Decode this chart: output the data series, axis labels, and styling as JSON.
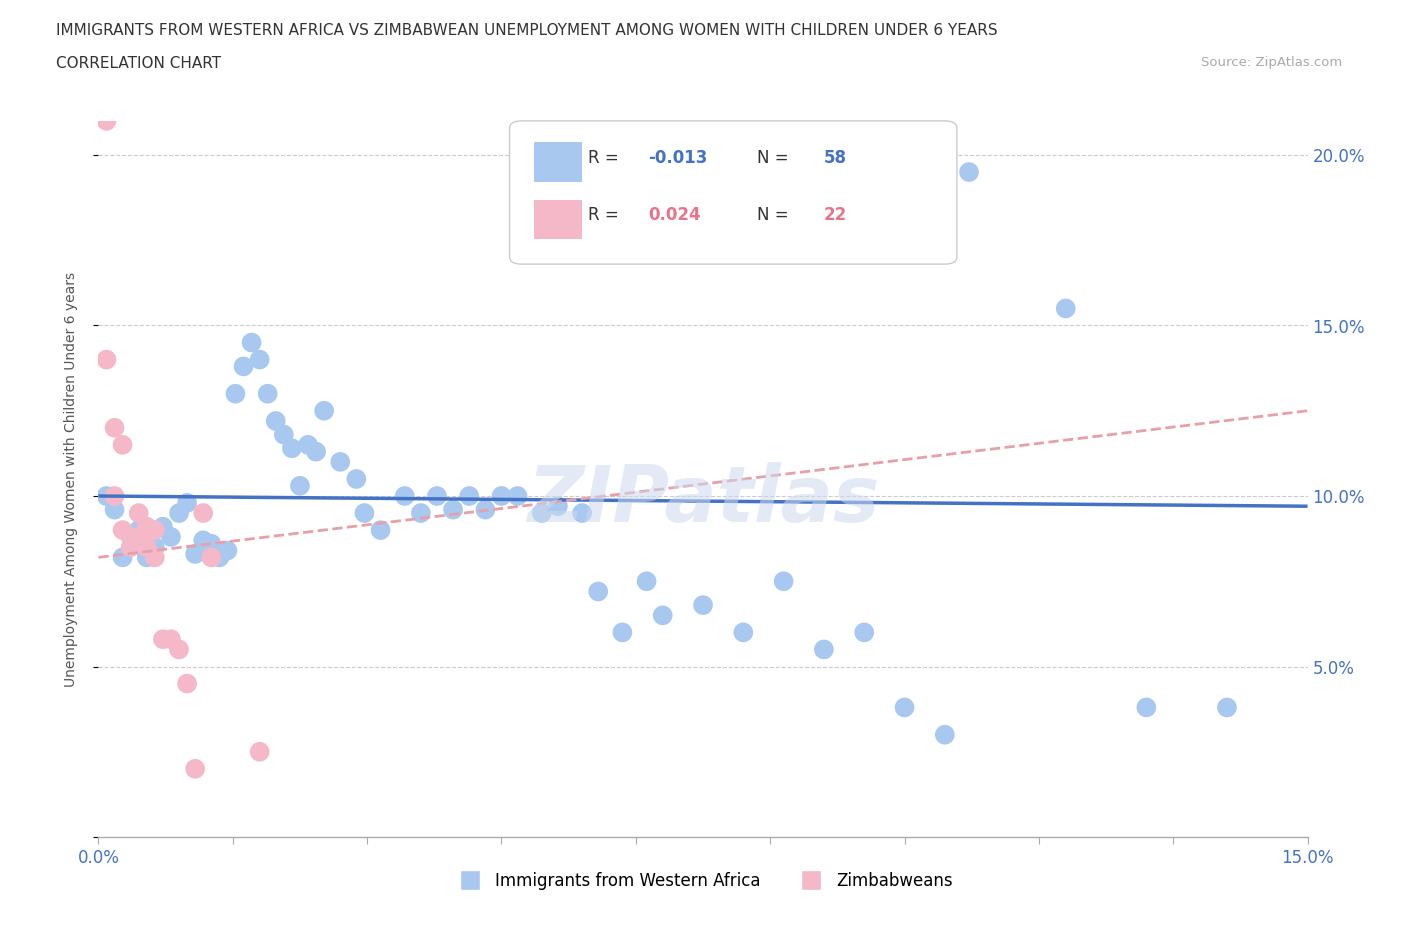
{
  "title_line1": "IMMIGRANTS FROM WESTERN AFRICA VS ZIMBABWEAN UNEMPLOYMENT AMONG WOMEN WITH CHILDREN UNDER 6 YEARS",
  "title_line2": "CORRELATION CHART",
  "source_text": "Source: ZipAtlas.com",
  "ylabel": "Unemployment Among Women with Children Under 6 years",
  "xmin": 0.0,
  "xmax": 0.15,
  "ymin": 0.0,
  "ymax": 0.21,
  "yticks": [
    0.0,
    0.05,
    0.1,
    0.15,
    0.2
  ],
  "ytick_labels": [
    "",
    "5.0%",
    "10.0%",
    "15.0%",
    "20.0%"
  ],
  "color_blue": "#a8c8f0",
  "color_pink": "#f4b8c8",
  "color_blue_text": "#4472c4",
  "color_pink_text": "#e8748a",
  "trendline1_color": "#4472c4",
  "trendline2_color": "#e8a0a8",
  "watermark_text": "ZIPatlas",
  "blue_trendline": [
    [
      0.0,
      0.1
    ],
    [
      0.15,
      0.097
    ]
  ],
  "pink_trendline": [
    [
      0.0,
      0.082
    ],
    [
      0.15,
      0.125
    ]
  ],
  "blue_points": [
    [
      0.001,
      0.1
    ],
    [
      0.002,
      0.096
    ],
    [
      0.003,
      0.082
    ],
    [
      0.004,
      0.088
    ],
    [
      0.005,
      0.09
    ],
    [
      0.006,
      0.082
    ],
    [
      0.007,
      0.085
    ],
    [
      0.008,
      0.091
    ],
    [
      0.009,
      0.088
    ],
    [
      0.01,
      0.095
    ],
    [
      0.011,
      0.098
    ],
    [
      0.012,
      0.083
    ],
    [
      0.013,
      0.087
    ],
    [
      0.014,
      0.086
    ],
    [
      0.015,
      0.082
    ],
    [
      0.016,
      0.084
    ],
    [
      0.017,
      0.13
    ],
    [
      0.018,
      0.138
    ],
    [
      0.019,
      0.145
    ],
    [
      0.02,
      0.14
    ],
    [
      0.021,
      0.13
    ],
    [
      0.022,
      0.122
    ],
    [
      0.023,
      0.118
    ],
    [
      0.024,
      0.114
    ],
    [
      0.025,
      0.103
    ],
    [
      0.026,
      0.115
    ],
    [
      0.027,
      0.113
    ],
    [
      0.028,
      0.125
    ],
    [
      0.03,
      0.11
    ],
    [
      0.032,
      0.105
    ],
    [
      0.033,
      0.095
    ],
    [
      0.035,
      0.09
    ],
    [
      0.038,
      0.1
    ],
    [
      0.04,
      0.095
    ],
    [
      0.042,
      0.1
    ],
    [
      0.044,
      0.096
    ],
    [
      0.046,
      0.1
    ],
    [
      0.048,
      0.096
    ],
    [
      0.05,
      0.1
    ],
    [
      0.052,
      0.1
    ],
    [
      0.055,
      0.095
    ],
    [
      0.057,
      0.097
    ],
    [
      0.06,
      0.095
    ],
    [
      0.062,
      0.072
    ],
    [
      0.065,
      0.06
    ],
    [
      0.068,
      0.075
    ],
    [
      0.07,
      0.065
    ],
    [
      0.075,
      0.068
    ],
    [
      0.08,
      0.06
    ],
    [
      0.085,
      0.075
    ],
    [
      0.09,
      0.055
    ],
    [
      0.095,
      0.06
    ],
    [
      0.1,
      0.038
    ],
    [
      0.105,
      0.03
    ],
    [
      0.108,
      0.195
    ],
    [
      0.12,
      0.155
    ],
    [
      0.13,
      0.038
    ],
    [
      0.14,
      0.038
    ]
  ],
  "pink_points": [
    [
      0.001,
      0.21
    ],
    [
      0.001,
      0.14
    ],
    [
      0.002,
      0.12
    ],
    [
      0.002,
      0.1
    ],
    [
      0.003,
      0.115
    ],
    [
      0.003,
      0.09
    ],
    [
      0.004,
      0.088
    ],
    [
      0.004,
      0.085
    ],
    [
      0.005,
      0.095
    ],
    [
      0.005,
      0.088
    ],
    [
      0.006,
      0.091
    ],
    [
      0.006,
      0.085
    ],
    [
      0.007,
      0.09
    ],
    [
      0.007,
      0.082
    ],
    [
      0.008,
      0.058
    ],
    [
      0.009,
      0.058
    ],
    [
      0.01,
      0.055
    ],
    [
      0.011,
      0.045
    ],
    [
      0.012,
      0.02
    ],
    [
      0.013,
      0.095
    ],
    [
      0.014,
      0.082
    ],
    [
      0.02,
      0.025
    ]
  ]
}
